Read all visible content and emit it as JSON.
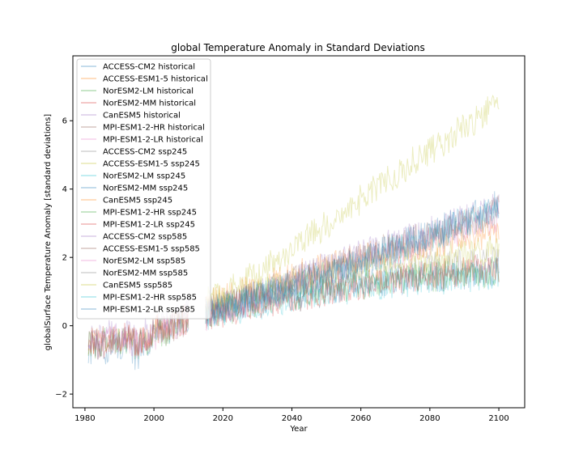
{
  "chart_data": {
    "type": "line",
    "title": "global Temperature Anomaly in Standard Deviations",
    "xlabel": "Year",
    "ylabel": "globalSurface Temperature Anomaly [standard deviations]",
    "xlim": [
      1976.5,
      2107.5
    ],
    "ylim": [
      -2.4,
      7.9
    ],
    "xticks": [
      1980,
      2000,
      2020,
      2040,
      2060,
      2080,
      2100
    ],
    "yticks": [
      -2,
      0,
      2,
      4,
      6
    ],
    "grid": false,
    "legend_position": "upper-left",
    "series": [
      {
        "name": "ACCESS-CM2 historical",
        "color": "#1f77b4",
        "x": [
          1981,
          1985,
          1990,
          1995,
          2000,
          2005,
          2010
        ],
        "y": [
          -0.7,
          -0.8,
          -0.5,
          -0.9,
          -0.2,
          -0.1,
          0.2
        ]
      },
      {
        "name": "ACCESS-ESM1-5 historical",
        "color": "#ff7f0e",
        "x": [
          1981,
          1985,
          1990,
          1995,
          2000,
          2005,
          2010
        ],
        "y": [
          -0.5,
          -0.4,
          -0.3,
          -0.5,
          -0.1,
          0.0,
          0.3
        ]
      },
      {
        "name": "NorESM2-LM historical",
        "color": "#2ca02c",
        "x": [
          1981,
          1985,
          1990,
          1995,
          2000,
          2005,
          2010
        ],
        "y": [
          -0.6,
          -0.5,
          -0.4,
          -0.6,
          -0.3,
          -0.1,
          0.1
        ]
      },
      {
        "name": "NorESM2-MM historical",
        "color": "#d62728",
        "x": [
          1981,
          1985,
          1990,
          1995,
          2000,
          2005,
          2010
        ],
        "y": [
          -0.5,
          -0.6,
          -0.3,
          -0.5,
          -0.2,
          0.1,
          0.2
        ]
      },
      {
        "name": "CanESM5 historical",
        "color": "#9467bd",
        "x": [
          1981,
          1985,
          1990,
          1995,
          2000,
          2005,
          2010
        ],
        "y": [
          -0.4,
          -0.3,
          -0.2,
          -0.4,
          0.0,
          0.2,
          0.4
        ]
      },
      {
        "name": "MPI-ESM1-2-HR historical",
        "color": "#8c564b",
        "x": [
          1981,
          1985,
          1990,
          1995,
          2000,
          2005,
          2010
        ],
        "y": [
          -0.5,
          -0.6,
          -0.4,
          -0.5,
          -0.2,
          -0.1,
          0.2
        ]
      },
      {
        "name": "MPI-ESM1-2-LR historical",
        "color": "#e377c2",
        "x": [
          1981,
          1985,
          1990,
          1995,
          2000,
          2005,
          2010
        ],
        "y": [
          -0.6,
          -0.5,
          -0.3,
          -0.6,
          -0.3,
          0.0,
          0.1
        ]
      },
      {
        "name": "ACCESS-CM2 ssp245",
        "color": "#7f7f7f",
        "x": [
          2015,
          2030,
          2045,
          2060,
          2075,
          2090,
          2100
        ],
        "y": [
          0.4,
          0.8,
          1.2,
          1.5,
          1.7,
          1.8,
          1.9
        ]
      },
      {
        "name": "ACCESS-ESM1-5 ssp245",
        "color": "#bcbd22",
        "x": [
          2015,
          2030,
          2045,
          2060,
          2075,
          2090,
          2100
        ],
        "y": [
          0.5,
          1.0,
          1.4,
          1.7,
          1.9,
          2.1,
          2.2
        ]
      },
      {
        "name": "NorESM2-LM ssp245",
        "color": "#17becf",
        "x": [
          2015,
          2030,
          2045,
          2060,
          2075,
          2090,
          2100
        ],
        "y": [
          0.3,
          0.6,
          0.9,
          1.1,
          1.3,
          1.4,
          1.5
        ]
      },
      {
        "name": "NorESM2-MM ssp245",
        "color": "#1f77b4",
        "x": [
          2015,
          2030,
          2045,
          2060,
          2075,
          2090,
          2100
        ],
        "y": [
          0.4,
          0.7,
          1.0,
          1.2,
          1.4,
          1.5,
          1.6
        ]
      },
      {
        "name": "CanESM5 ssp245",
        "color": "#ff7f0e",
        "x": [
          2015,
          2030,
          2045,
          2060,
          2075,
          2090,
          2100
        ],
        "y": [
          0.6,
          1.1,
          1.6,
          2.0,
          2.3,
          2.6,
          2.7
        ]
      },
      {
        "name": "MPI-ESM1-2-HR ssp245",
        "color": "#2ca02c",
        "x": [
          2015,
          2030,
          2045,
          2060,
          2075,
          2090,
          2100
        ],
        "y": [
          0.3,
          0.7,
          1.0,
          1.2,
          1.4,
          1.5,
          1.6
        ]
      },
      {
        "name": "MPI-ESM1-2-LR ssp245",
        "color": "#d62728",
        "x": [
          2015,
          2030,
          2045,
          2060,
          2075,
          2090,
          2100
        ],
        "y": [
          0.3,
          0.6,
          0.9,
          1.2,
          1.4,
          1.6,
          1.7
        ]
      },
      {
        "name": "ACCESS-CM2 ssp585",
        "color": "#9467bd",
        "x": [
          2015,
          2030,
          2045,
          2060,
          2075,
          2090,
          2100
        ],
        "y": [
          0.4,
          0.9,
          1.5,
          2.1,
          2.6,
          3.1,
          3.5
        ]
      },
      {
        "name": "ACCESS-ESM1-5 ssp585",
        "color": "#8c564b",
        "x": [
          2015,
          2030,
          2045,
          2060,
          2075,
          2090,
          2100
        ],
        "y": [
          0.4,
          0.9,
          1.5,
          2.0,
          2.5,
          3.0,
          3.4
        ]
      },
      {
        "name": "NorESM2-LM ssp585",
        "color": "#e377c2",
        "x": [
          2015,
          2030,
          2045,
          2060,
          2075,
          2090,
          2100
        ],
        "y": [
          0.3,
          0.8,
          1.3,
          1.8,
          2.3,
          2.8,
          3.2
        ]
      },
      {
        "name": "NorESM2-MM ssp585",
        "color": "#7f7f7f",
        "x": [
          2015,
          2030,
          2045,
          2060,
          2075,
          2090,
          2100
        ],
        "y": [
          0.4,
          0.9,
          1.4,
          1.9,
          2.4,
          2.9,
          3.3
        ]
      },
      {
        "name": "CanESM5 ssp585",
        "color": "#bcbd22",
        "x": [
          2015,
          2030,
          2045,
          2060,
          2075,
          2090,
          2100
        ],
        "y": [
          0.7,
          1.5,
          2.6,
          3.7,
          4.8,
          5.8,
          6.5
        ]
      },
      {
        "name": "MPI-ESM1-2-HR ssp585",
        "color": "#17becf",
        "x": [
          2015,
          2030,
          2045,
          2060,
          2075,
          2090,
          2100
        ],
        "y": [
          0.3,
          0.8,
          1.3,
          1.8,
          2.4,
          3.0,
          3.5
        ]
      },
      {
        "name": "MPI-ESM1-2-LR ssp585",
        "color": "#1f77b4",
        "x": [
          2015,
          2030,
          2045,
          2060,
          2075,
          2090,
          2100
        ],
        "y": [
          0.4,
          0.9,
          1.4,
          1.9,
          2.5,
          3.1,
          3.6
        ]
      }
    ]
  }
}
